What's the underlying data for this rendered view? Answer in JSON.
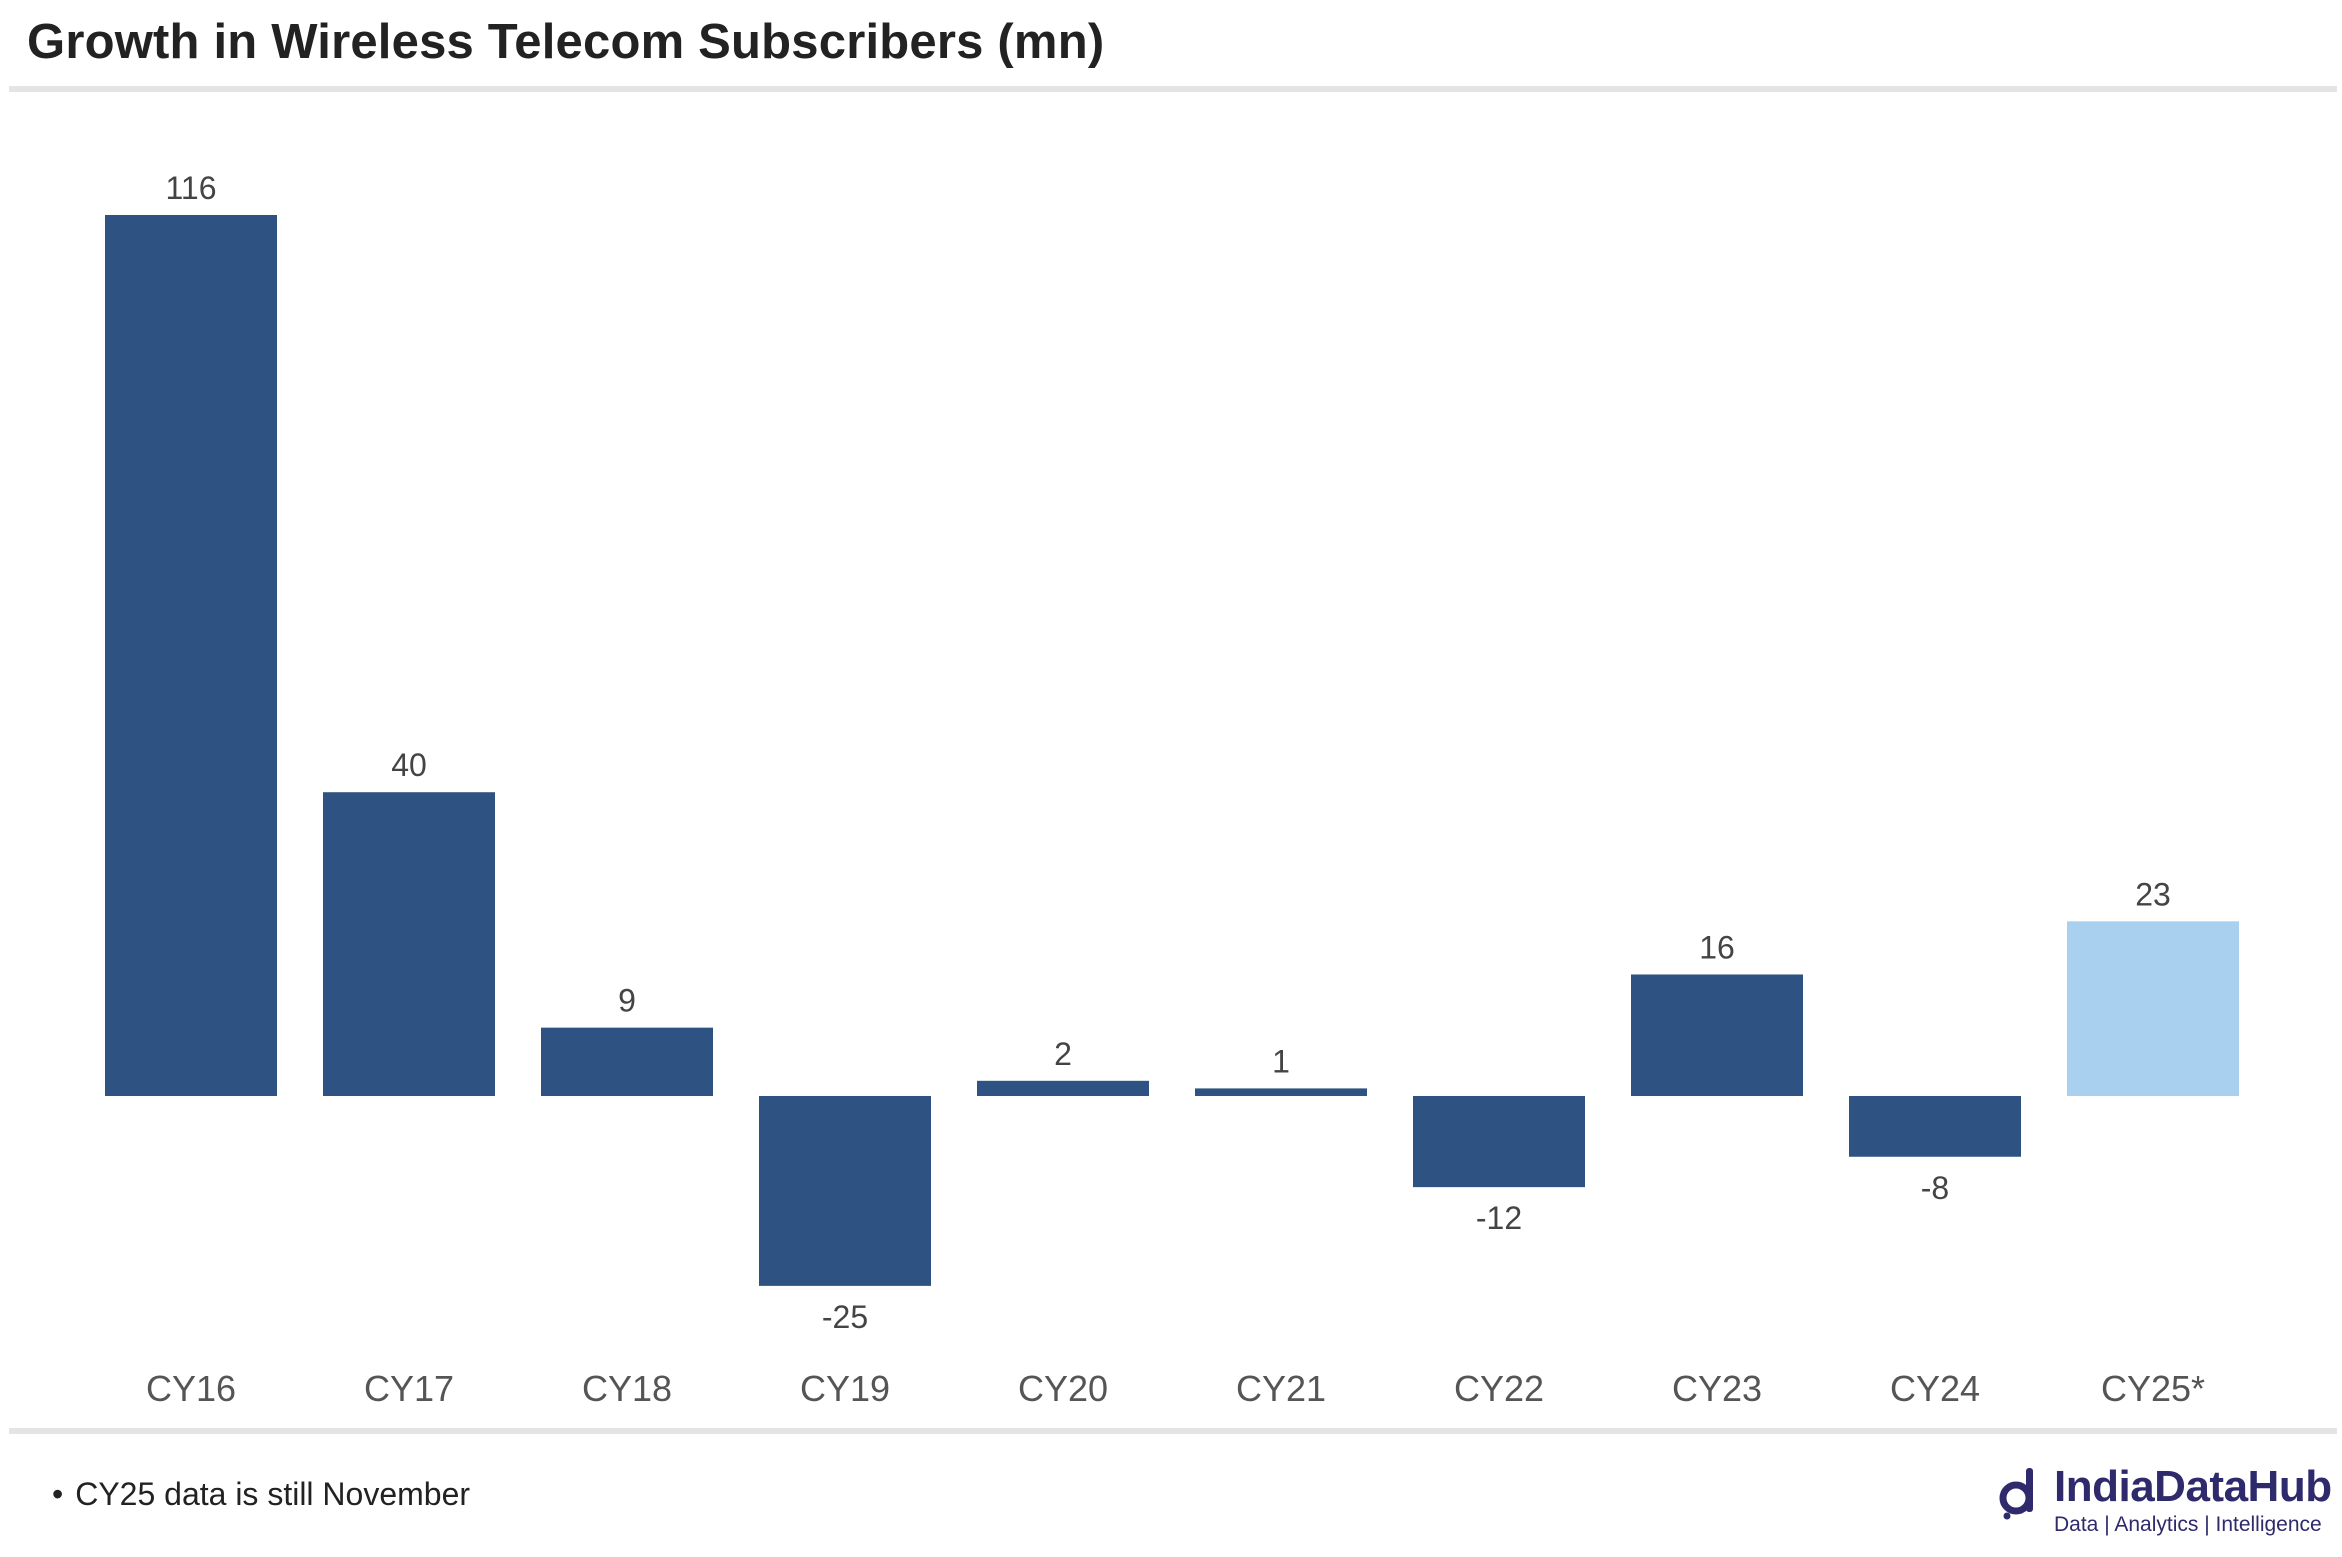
{
  "chart_data": {
    "type": "bar",
    "title": "Growth in Wireless Telecom Subscribers (mn)",
    "categories": [
      "CY16",
      "CY17",
      "CY18",
      "CY19",
      "CY20",
      "CY21",
      "CY22",
      "CY23",
      "CY24",
      "CY25*"
    ],
    "values": [
      116,
      40,
      9,
      -25,
      2,
      1,
      -12,
      16,
      -8,
      23
    ],
    "value_labels": [
      "116",
      "40",
      "9",
      "-25",
      "2",
      "1",
      "-12",
      "16",
      "-8",
      "23"
    ],
    "xlabel": "",
    "ylabel": "",
    "ylim": [
      -25,
      116
    ],
    "grid": false,
    "legend": "none",
    "colors": {
      "bar": "#2e5282",
      "highlight": "#aad0ef"
    },
    "highlight_categories": [
      "CY25*"
    ]
  },
  "footnote": {
    "bullet": "•",
    "text": "CY25 data is still November"
  },
  "logo": {
    "brand": "IndiaDataHub",
    "tagline": "Data | Analytics | Intelligence",
    "icon": "indiadatahub-logo-icon",
    "color": "#2e2a6b"
  }
}
